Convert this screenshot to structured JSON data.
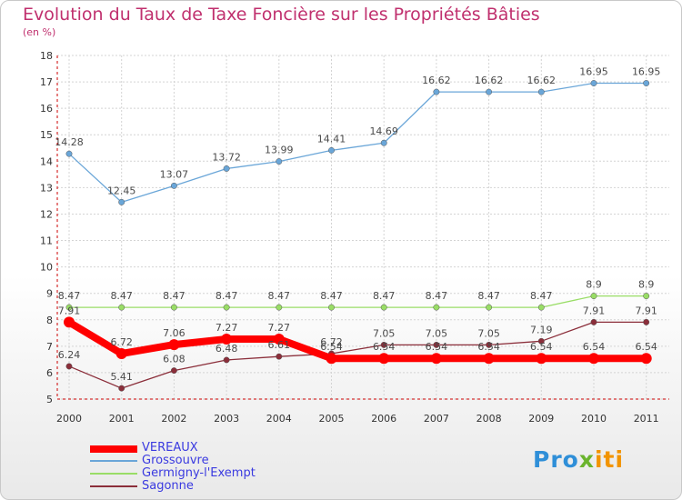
{
  "header": {
    "title": "Evolution du Taux de Taxe Foncière sur les Propriétés Bâties",
    "subtitle": "(en %)"
  },
  "logo": {
    "part1": "Pro",
    "part2": "x",
    "part3": "iti"
  },
  "chart_data": {
    "type": "line",
    "title": "Evolution du Taux de Taxe Foncière sur les Propriétés Bâties",
    "ylabel": "(en %)",
    "xlabel": "",
    "ylim": [
      5,
      18
    ],
    "yticks": [
      "5",
      "6",
      "7",
      "8",
      "9",
      "10",
      "11",
      "12",
      "13",
      "14",
      "15",
      "16",
      "17",
      "18"
    ],
    "categories": [
      "2000",
      "2001",
      "2002",
      "2003",
      "2004",
      "2005",
      "2006",
      "2007",
      "2008",
      "2009",
      "2010",
      "2011"
    ],
    "grid": true,
    "legend": "bottom-left",
    "series": [
      {
        "name": "VEREAUX",
        "color": "#ff0000",
        "values": [
          7.91,
          6.72,
          7.06,
          7.27,
          7.27,
          6.54,
          6.54,
          6.54,
          6.54,
          6.54,
          6.54,
          6.54
        ],
        "labels": [
          "7.91",
          "6.72",
          "7.06",
          "7.27",
          "7.27",
          "6.54",
          "6.54",
          "6.54",
          "6.54",
          "6.54",
          "6.54",
          "6.54"
        ]
      },
      {
        "name": "Grossouvre",
        "color": "#6aa6d8",
        "values": [
          14.28,
          12.45,
          13.07,
          13.72,
          13.99,
          14.41,
          14.69,
          16.62,
          16.62,
          16.62,
          16.95,
          16.95
        ],
        "labels": [
          "14.28",
          "12.45",
          "13.07",
          "13.72",
          "13.99",
          "14.41",
          "14.69",
          "16.62",
          "16.62",
          "16.62",
          "16.95",
          "16.95"
        ]
      },
      {
        "name": "Germigny-l'Exempt",
        "color": "#99dd66",
        "values": [
          8.47,
          8.47,
          8.47,
          8.47,
          8.47,
          8.47,
          8.47,
          8.47,
          8.47,
          8.47,
          8.9,
          8.9
        ],
        "labels": [
          "8.47",
          "8.47",
          "8.47",
          "8.47",
          "8.47",
          "8.47",
          "8.47",
          "8.47",
          "8.47",
          "8.47",
          "8.9",
          "8.9"
        ]
      },
      {
        "name": "Sagonne",
        "color": "#8b2e3a",
        "values": [
          6.24,
          5.41,
          6.08,
          6.48,
          6.61,
          6.72,
          7.05,
          7.05,
          7.05,
          7.19,
          7.91,
          7.91
        ],
        "labels": [
          "6.24",
          "5.41",
          "6.08",
          "6.48",
          "6.61",
          "6.72",
          "7.05",
          "7.05",
          "7.05",
          "7.19",
          "7.91",
          "7.91"
        ]
      }
    ]
  }
}
